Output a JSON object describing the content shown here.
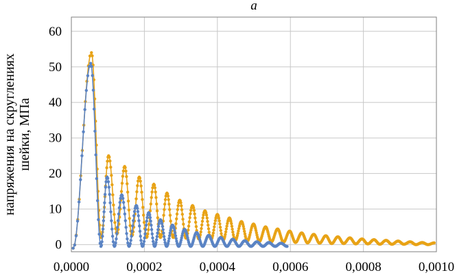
{
  "panel_label": "a",
  "chart_data": {
    "type": "line",
    "title": "",
    "xlabel": "",
    "ylabel_lines": [
      "напряжения на скруглениях",
      "шейки, МПа"
    ],
    "xlim": [
      0,
      0.001
    ],
    "ylim": [
      -2,
      64
    ],
    "x_ticks": [
      0,
      0.0002,
      0.0004,
      0.0006,
      0.0008,
      0.001
    ],
    "x_tick_labels": [
      "0,0000",
      "0,0002",
      "0,0004",
      "0,0006",
      "0,0008",
      "0,0010"
    ],
    "y_ticks": [
      0,
      10,
      20,
      30,
      40,
      50,
      60
    ],
    "y_tick_labels": [
      "0",
      "10",
      "20",
      "30",
      "40",
      "50",
      "60"
    ],
    "grid": true,
    "legend": "none",
    "series": [
      {
        "color": "#E8A317",
        "marker": "circle",
        "peaks": [
          [
            5.5e-05,
            54
          ],
          [
            0.000102,
            25
          ],
          [
            0.000146,
            22
          ],
          [
            0.000186,
            19
          ],
          [
            0.000226,
            17
          ],
          [
            0.000262,
            14.5
          ],
          [
            0.000297,
            12.5
          ],
          [
            0.000332,
            11
          ],
          [
            0.000366,
            9.5
          ],
          [
            0.0004,
            8.5
          ],
          [
            0.000433,
            7.5
          ],
          [
            0.000466,
            6.5
          ],
          [
            0.000499,
            5.8
          ],
          [
            0.000532,
            5
          ],
          [
            0.000565,
            4.4
          ],
          [
            0.000598,
            3.8
          ],
          [
            0.000631,
            3.3
          ],
          [
            0.000664,
            2.9
          ],
          [
            0.000697,
            2.5
          ],
          [
            0.00073,
            2.2
          ],
          [
            0.000763,
            1.9
          ],
          [
            0.000796,
            1.6
          ],
          [
            0.000829,
            1.4
          ],
          [
            0.000862,
            1.2
          ],
          [
            0.000895,
            1.0
          ],
          [
            0.000928,
            0.8
          ],
          [
            0.000961,
            0.6
          ],
          [
            0.000994,
            0.5
          ]
        ],
        "valleys": [
          [
            5e-06,
            -1
          ],
          [
            8.2e-05,
            2
          ],
          [
            0.000125,
            3
          ],
          [
            0.000166,
            2.5
          ],
          [
            0.000206,
            2
          ],
          [
            0.000244,
            2
          ],
          [
            0.000279,
            2
          ],
          [
            0.000314,
            1.8
          ],
          [
            0.000349,
            1.6
          ],
          [
            0.000383,
            1.5
          ],
          [
            0.000416,
            1.3
          ],
          [
            0.000449,
            1.2
          ],
          [
            0.000482,
            1.0
          ],
          [
            0.000515,
            0.9
          ],
          [
            0.000548,
            0.8
          ],
          [
            0.000581,
            0.7
          ],
          [
            0.000614,
            0.6
          ],
          [
            0.000647,
            0.5
          ],
          [
            0.00068,
            0.4
          ],
          [
            0.000713,
            0.3
          ],
          [
            0.000746,
            0.3
          ],
          [
            0.000779,
            0.2
          ],
          [
            0.000812,
            0.2
          ],
          [
            0.000845,
            0.1
          ],
          [
            0.000878,
            0.1
          ],
          [
            0.000911,
            0.1
          ],
          [
            0.000944,
            0.0
          ],
          [
            0.000977,
            0.0
          ]
        ]
      },
      {
        "color": "#5B84C4",
        "marker": "circle",
        "peaks": [
          [
            5.3e-05,
            51
          ],
          [
            9.8e-05,
            19
          ],
          [
            0.000138,
            14
          ],
          [
            0.000178,
            11
          ],
          [
            0.000212,
            9
          ],
          [
            0.000244,
            7
          ],
          [
            0.000277,
            5.5
          ],
          [
            0.00031,
            4.3
          ],
          [
            0.000343,
            3.4
          ],
          [
            0.000376,
            2.6
          ],
          [
            0.000409,
            2.0
          ],
          [
            0.000442,
            1.5
          ],
          [
            0.000475,
            1.1
          ],
          [
            0.000508,
            0.8
          ],
          [
            0.000541,
            0.6
          ],
          [
            0.000574,
            0.4
          ]
        ],
        "valleys": [
          [
            5e-06,
            -1
          ],
          [
            8.1e-05,
            -0.5
          ],
          [
            0.000118,
            -0.5
          ],
          [
            0.000158,
            -0.5
          ],
          [
            0.000195,
            -0.5
          ],
          [
            0.000228,
            -0.5
          ],
          [
            0.000261,
            -0.5
          ],
          [
            0.000294,
            -0.5
          ],
          [
            0.000327,
            -0.5
          ],
          [
            0.00036,
            -0.5
          ],
          [
            0.000393,
            -0.5
          ],
          [
            0.000426,
            -0.5
          ],
          [
            0.000459,
            -0.5
          ],
          [
            0.000492,
            -0.5
          ],
          [
            0.000525,
            -0.5
          ],
          [
            0.000558,
            -0.5
          ],
          [
            0.000591,
            -0.5
          ]
        ]
      }
    ]
  }
}
